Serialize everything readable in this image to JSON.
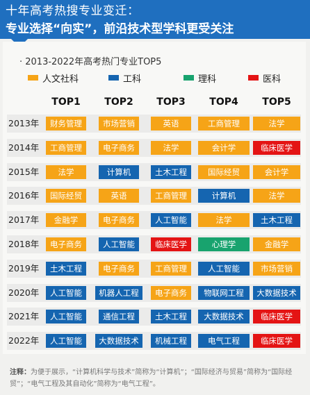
{
  "header": {
    "line1": "十年高考热搜专业变迁：",
    "line2": "专业选择“向实”，前沿技术型学科更受关注"
  },
  "chart_data": {
    "type": "table",
    "title": "· 2013-2022年高考热门专业TOP5",
    "legend": [
      {
        "label": "人文社科",
        "color": "#f6a417"
      },
      {
        "label": "工科",
        "color": "#1565b0"
      },
      {
        "label": "理科",
        "color": "#18a36e"
      },
      {
        "label": "医科",
        "color": "#e41414"
      }
    ],
    "columns": [
      "TOP1",
      "TOP2",
      "TOP3",
      "TOP4",
      "TOP5"
    ],
    "rows": [
      {
        "year": "2013年",
        "items": [
          [
            "财务管理",
            "人文社科"
          ],
          [
            "市场营销",
            "人文社科"
          ],
          [
            "英语",
            "人文社科"
          ],
          [
            "工商管理",
            "人文社科"
          ],
          [
            "法学",
            "人文社科"
          ]
        ]
      },
      {
        "year": "2014年",
        "items": [
          [
            "工商管理",
            "人文社科"
          ],
          [
            "电子商务",
            "人文社科"
          ],
          [
            "法学",
            "人文社科"
          ],
          [
            "会计学",
            "人文社科"
          ],
          [
            "临床医学",
            "医科"
          ]
        ]
      },
      {
        "year": "2015年",
        "items": [
          [
            "法学",
            "人文社科"
          ],
          [
            "计算机",
            "工科"
          ],
          [
            "土木工程",
            "工科"
          ],
          [
            "国际经贸",
            "人文社科"
          ],
          [
            "会计学",
            "人文社科"
          ]
        ]
      },
      {
        "year": "2016年",
        "items": [
          [
            "国际经贸",
            "人文社科"
          ],
          [
            "英语",
            "人文社科"
          ],
          [
            "工商管理",
            "人文社科"
          ],
          [
            "计算机",
            "工科"
          ],
          [
            "法学",
            "人文社科"
          ]
        ]
      },
      {
        "year": "2017年",
        "items": [
          [
            "金融学",
            "人文社科"
          ],
          [
            "电子商务",
            "人文社科"
          ],
          [
            "人工智能",
            "工科"
          ],
          [
            "法学",
            "人文社科"
          ],
          [
            "土木工程",
            "工科"
          ]
        ]
      },
      {
        "year": "2018年",
        "items": [
          [
            "电子商务",
            "人文社科"
          ],
          [
            "人工智能",
            "工科"
          ],
          [
            "临床医学",
            "医科"
          ],
          [
            "心理学",
            "理科"
          ],
          [
            "金融学",
            "人文社科"
          ]
        ]
      },
      {
        "year": "2019年",
        "items": [
          [
            "土木工程",
            "工科"
          ],
          [
            "电子商务",
            "人文社科"
          ],
          [
            "工商管理",
            "人文社科"
          ],
          [
            "人工智能",
            "工科"
          ],
          [
            "市场营销",
            "人文社科"
          ]
        ]
      },
      {
        "year": "2020年",
        "items": [
          [
            "人工智能",
            "工科"
          ],
          [
            "机器人工程",
            "工科"
          ],
          [
            "电子商务",
            "人文社科"
          ],
          [
            "物联网工程",
            "工科"
          ],
          [
            "大数据技术",
            "工科"
          ]
        ]
      },
      {
        "year": "2021年",
        "items": [
          [
            "人工智能",
            "工科"
          ],
          [
            "通信工程",
            "工科"
          ],
          [
            "土木工程",
            "工科"
          ],
          [
            "大数据技术",
            "工科"
          ],
          [
            "临床医学",
            "医科"
          ]
        ]
      },
      {
        "year": "2022年",
        "items": [
          [
            "人工智能",
            "工科"
          ],
          [
            "大数据技术",
            "工科"
          ],
          [
            "机械工程",
            "工科"
          ],
          [
            "电气工程",
            "工科"
          ],
          [
            "临床医学",
            "医科"
          ]
        ]
      }
    ]
  },
  "note": {
    "label": "注释：",
    "text": "为便于展示，“计算机科学与技术”简称为“计算机”；“国际经济与贸易”简称为“国际经贸”；“电气工程及其自动化”简称为“电气工程”。"
  }
}
